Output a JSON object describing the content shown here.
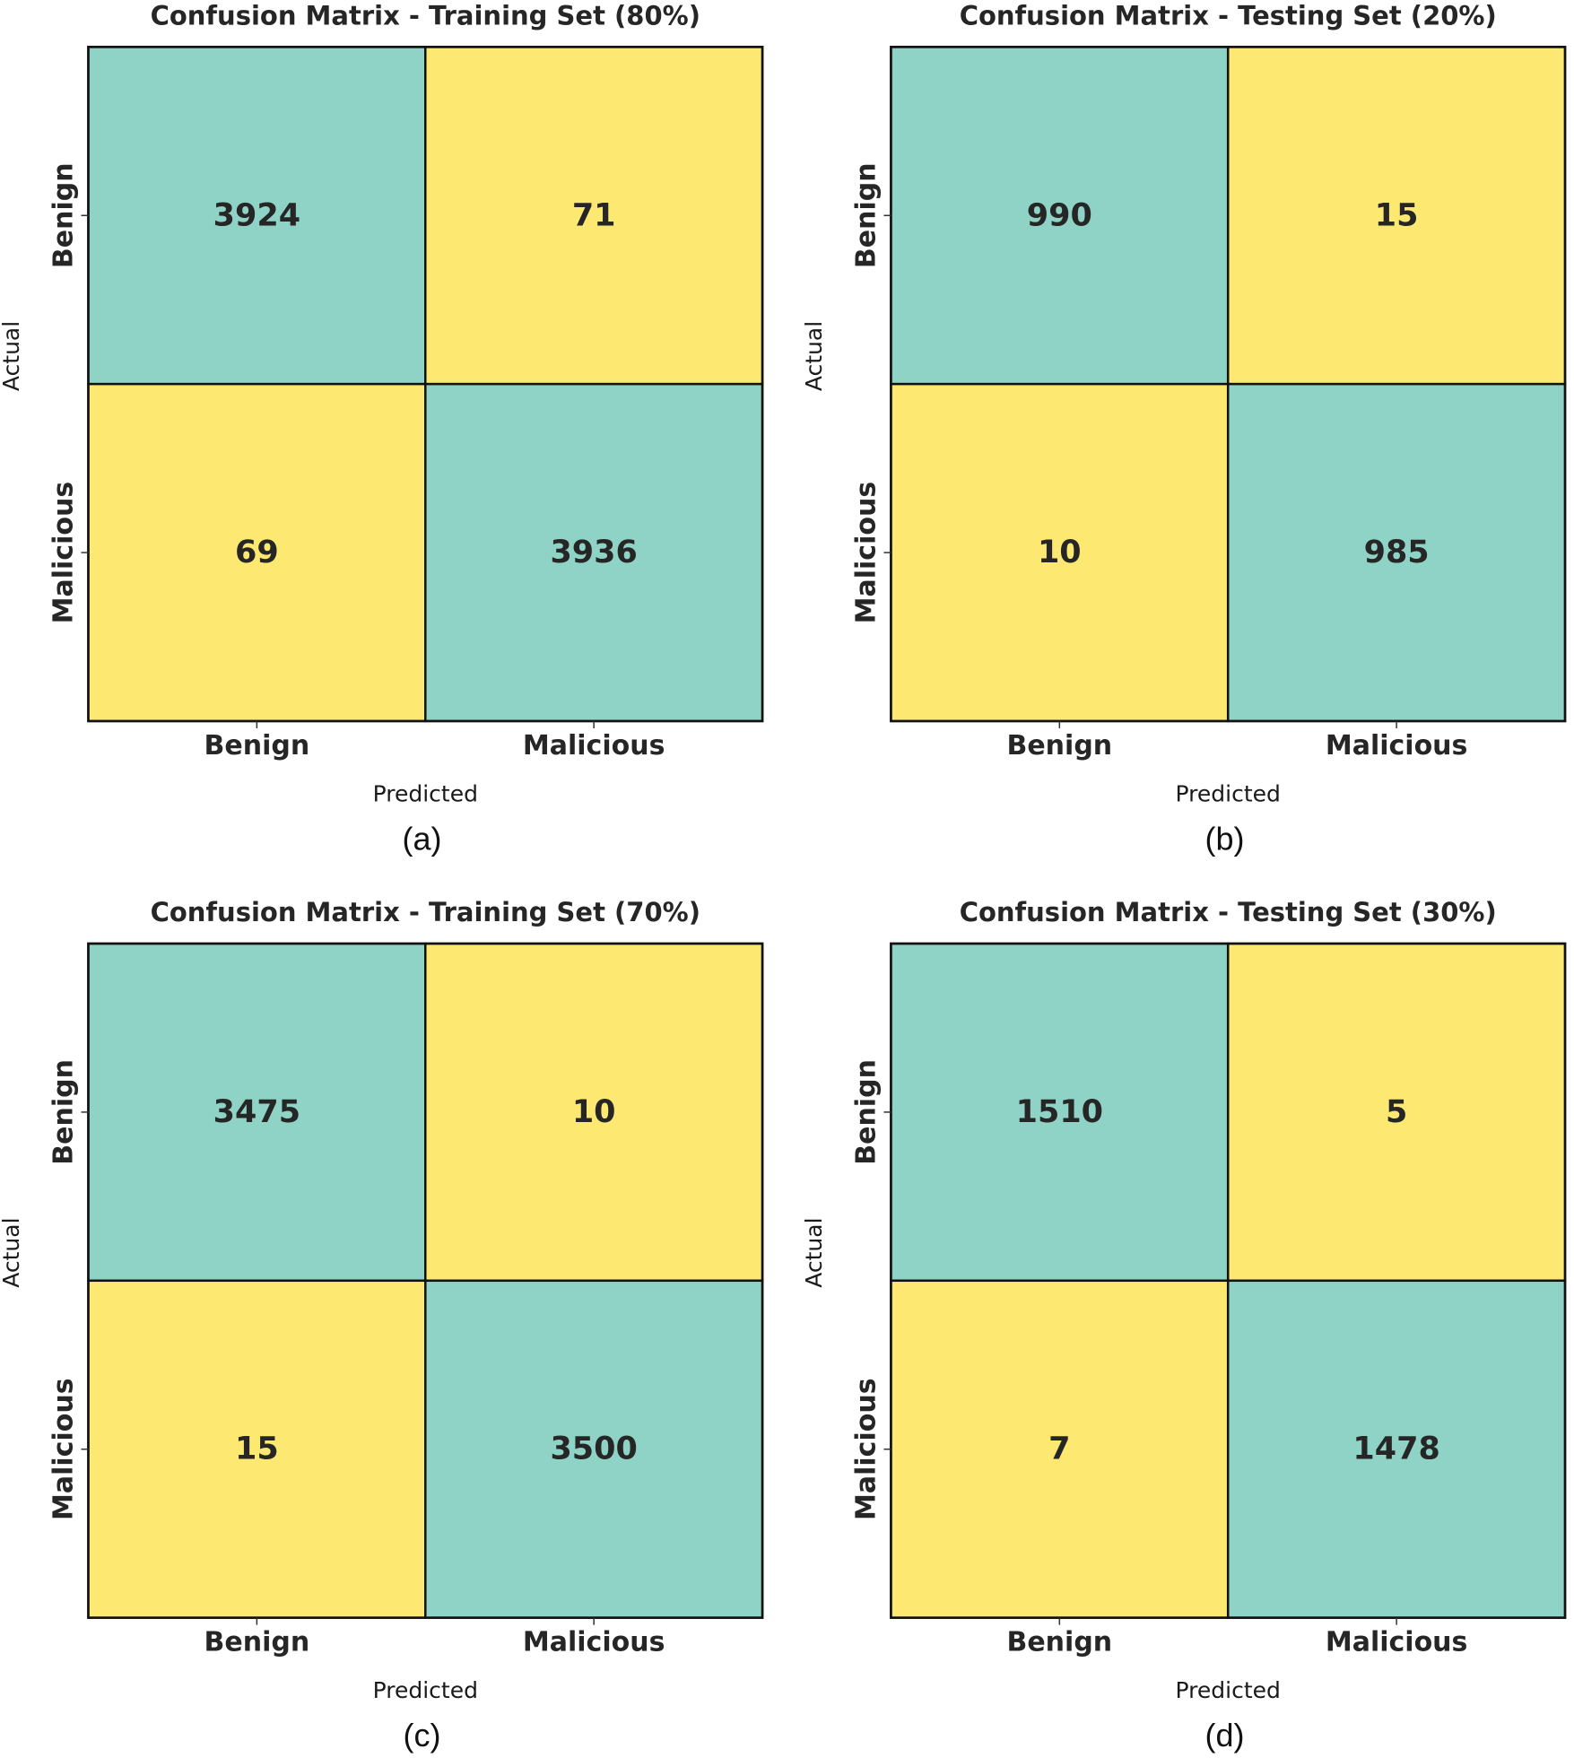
{
  "colors": {
    "correct": "#8fd3c6",
    "error": "#fde971",
    "grid": "#111111"
  },
  "chart_data": [
    {
      "type": "heatmap",
      "title": "Confusion Matrix - Training Set (80%)",
      "xlabel": "Predicted",
      "ylabel": "Actual",
      "x_categories": [
        "Benign",
        "Malicious"
      ],
      "y_categories": [
        "Benign",
        "Malicious"
      ],
      "matrix": [
        [
          3924,
          71
        ],
        [
          69,
          3936
        ]
      ],
      "panel_label": "(a)"
    },
    {
      "type": "heatmap",
      "title": "Confusion Matrix - Testing Set (20%)",
      "xlabel": "Predicted",
      "ylabel": "Actual",
      "x_categories": [
        "Benign",
        "Malicious"
      ],
      "y_categories": [
        "Benign",
        "Malicious"
      ],
      "matrix": [
        [
          990,
          15
        ],
        [
          10,
          985
        ]
      ],
      "panel_label": "(b)"
    },
    {
      "type": "heatmap",
      "title": "Confusion Matrix - Training Set (70%)",
      "xlabel": "Predicted",
      "ylabel": "Actual",
      "x_categories": [
        "Benign",
        "Malicious"
      ],
      "y_categories": [
        "Benign",
        "Malicious"
      ],
      "matrix": [
        [
          3475,
          10
        ],
        [
          15,
          3500
        ]
      ],
      "panel_label": "(c)"
    },
    {
      "type": "heatmap",
      "title": "Confusion Matrix - Testing Set (30%)",
      "xlabel": "Predicted",
      "ylabel": "Actual",
      "x_categories": [
        "Benign",
        "Malicious"
      ],
      "y_categories": [
        "Benign",
        "Malicious"
      ],
      "matrix": [
        [
          1510,
          5
        ],
        [
          7,
          1478
        ]
      ],
      "panel_label": "(d)"
    }
  ]
}
